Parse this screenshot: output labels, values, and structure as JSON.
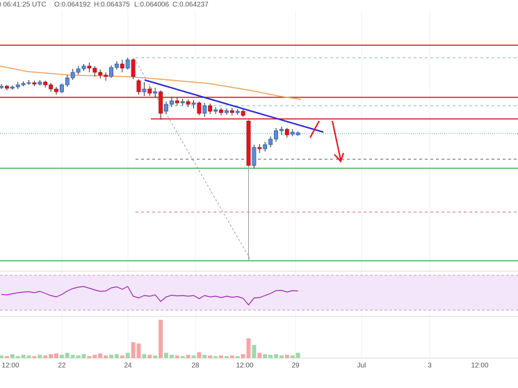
{
  "chart_data": {
    "type": "candlestick",
    "header": {
      "time": "0 06:41:25 UTC",
      "open": "O:0.064192",
      "high": "H:0.064375",
      "low": "L:0.064006",
      "close": "C:0.064237"
    },
    "x_labels": [
      "12:00",
      "22",
      "24",
      "28",
      "12:00",
      "29",
      "Jul",
      "3",
      "12:00"
    ],
    "ylim": [
      0.06225,
      0.06585
    ],
    "up_color": "#5a8fdc",
    "down_color": "#e8121c",
    "open": [
      0.06489,
      0.06491,
      0.06488,
      0.0649,
      0.06493,
      0.06495,
      0.06496,
      0.06494,
      0.06497,
      0.06493,
      0.06487,
      0.06483,
      0.06493,
      0.06503,
      0.06511,
      0.06516,
      0.0652,
      0.06517,
      0.06511,
      0.06507,
      0.06505,
      0.06518,
      0.06523,
      0.06517,
      0.06529,
      0.06499,
      0.06483,
      0.06487,
      0.06481,
      0.06483,
      0.06455,
      0.06465,
      0.0647,
      0.06467,
      0.06469,
      0.06465,
      0.06467,
      0.06452,
      0.06463,
      0.06455,
      0.06457,
      0.06453,
      0.06456,
      0.06453,
      0.06455,
      0.06441,
      0.06377,
      0.06403,
      0.06401,
      0.06407,
      0.06415,
      0.06427,
      0.06429,
      0.06422,
      0.06421
    ],
    "high": [
      0.06494,
      0.06493,
      0.06492,
      0.06497,
      0.06498,
      0.065,
      0.06499,
      0.065,
      0.06499,
      0.06496,
      0.0649,
      0.06495,
      0.06507,
      0.06516,
      0.0652,
      0.06523,
      0.06525,
      0.0652,
      0.06515,
      0.06511,
      0.06521,
      0.06527,
      0.06529,
      0.06532,
      0.06531,
      0.06501,
      0.06497,
      0.06491,
      0.06489,
      0.06485,
      0.06469,
      0.06475,
      0.06475,
      0.06473,
      0.06472,
      0.06471,
      0.06469,
      0.06467,
      0.06466,
      0.06461,
      0.0646,
      0.06459,
      0.0646,
      0.06458,
      0.06458,
      0.06443,
      0.06407,
      0.06408,
      0.06411,
      0.06419,
      0.06431,
      0.06433,
      0.06431,
      0.06429,
      0.06426
    ],
    "low": [
      0.06487,
      0.06485,
      0.06486,
      0.06487,
      0.06491,
      0.06493,
      0.06491,
      0.06492,
      0.06489,
      0.06483,
      0.06479,
      0.06481,
      0.0649,
      0.065,
      0.06508,
      0.06513,
      0.06511,
      0.06505,
      0.06502,
      0.06499,
      0.06503,
      0.06515,
      0.06511,
      0.06515,
      0.06501,
      0.06479,
      0.06477,
      0.06477,
      0.06475,
      0.06443,
      0.06451,
      0.06461,
      0.06463,
      0.06463,
      0.06461,
      0.06459,
      0.06449,
      0.06447,
      0.06451,
      0.06451,
      0.06449,
      0.0645,
      0.06449,
      0.0645,
      0.06447,
      0.0624,
      0.06373,
      0.06395,
      0.06397,
      0.06403,
      0.06411,
      0.06421,
      0.06417,
      0.06419,
      0.0642
    ],
    "close": [
      0.06491,
      0.06488,
      0.0649,
      0.06493,
      0.06495,
      0.06496,
      0.06494,
      0.06497,
      0.06493,
      0.06487,
      0.06483,
      0.06493,
      0.06503,
      0.06511,
      0.06516,
      0.0652,
      0.06517,
      0.06511,
      0.06507,
      0.06505,
      0.06518,
      0.06523,
      0.06517,
      0.06529,
      0.06505,
      0.06483,
      0.06487,
      0.06481,
      0.06483,
      0.06452,
      0.06465,
      0.0647,
      0.06467,
      0.06469,
      0.06465,
      0.06467,
      0.06452,
      0.06463,
      0.06455,
      0.06457,
      0.06453,
      0.06456,
      0.06453,
      0.06455,
      0.06449,
      0.06377,
      0.06403,
      0.06401,
      0.06407,
      0.06415,
      0.06427,
      0.06429,
      0.06421,
      0.06425,
      0.06424
    ],
    "levels": [
      {
        "value": 0.0655,
        "color": "#e0101b",
        "style": "solid"
      },
      {
        "value": 0.06475,
        "color": "#e0101b",
        "style": "solid"
      },
      {
        "value": 0.06444,
        "color": "#e0101b",
        "style": "solid"
      },
      {
        "value": 0.06373,
        "color": "#4caf50",
        "style": "solid"
      },
      {
        "value": 0.0624,
        "color": "#4caf50",
        "style": "solid"
      },
      {
        "value": 0.06532,
        "color": "#7fb8c4",
        "style": "dashed"
      },
      {
        "value": 0.06463,
        "color": "#7fb8c4",
        "style": "dashed"
      },
      {
        "value": 0.06423,
        "color": "#3aa0b0",
        "style": "dotted"
      },
      {
        "value": 0.06386,
        "color": "#555555",
        "style": "dashed"
      },
      {
        "value": 0.0631,
        "color": "#e06060",
        "style": "dashed"
      }
    ],
    "rsi_lim": [
      0,
      100
    ],
    "rsi_color": "#9c27b0",
    "rsi": [
      45,
      44,
      47,
      50,
      52,
      53,
      50,
      54,
      48,
      42,
      38,
      45,
      55,
      62,
      66,
      68,
      63,
      58,
      54,
      55,
      64,
      67,
      60,
      68,
      40,
      35,
      42,
      40,
      44,
      25,
      38,
      43,
      41,
      42,
      40,
      42,
      33,
      42,
      38,
      40,
      36,
      40,
      37,
      39,
      34,
      15,
      35,
      36,
      42,
      48,
      56,
      57,
      52,
      56,
      55
    ],
    "volume_lim": [
      0,
      60
    ],
    "volume": [
      4,
      3,
      6,
      3,
      5,
      4,
      3,
      5,
      4,
      6,
      7,
      5,
      8,
      5,
      4,
      6,
      3,
      5,
      7,
      4,
      5,
      6,
      4,
      8,
      24,
      22,
      6,
      5,
      4,
      58,
      8,
      5,
      4,
      3,
      5,
      4,
      9,
      5,
      4,
      3,
      4,
      3,
      4,
      3,
      6,
      30,
      20,
      8,
      6,
      5,
      6,
      4,
      5,
      4,
      8
    ]
  }
}
